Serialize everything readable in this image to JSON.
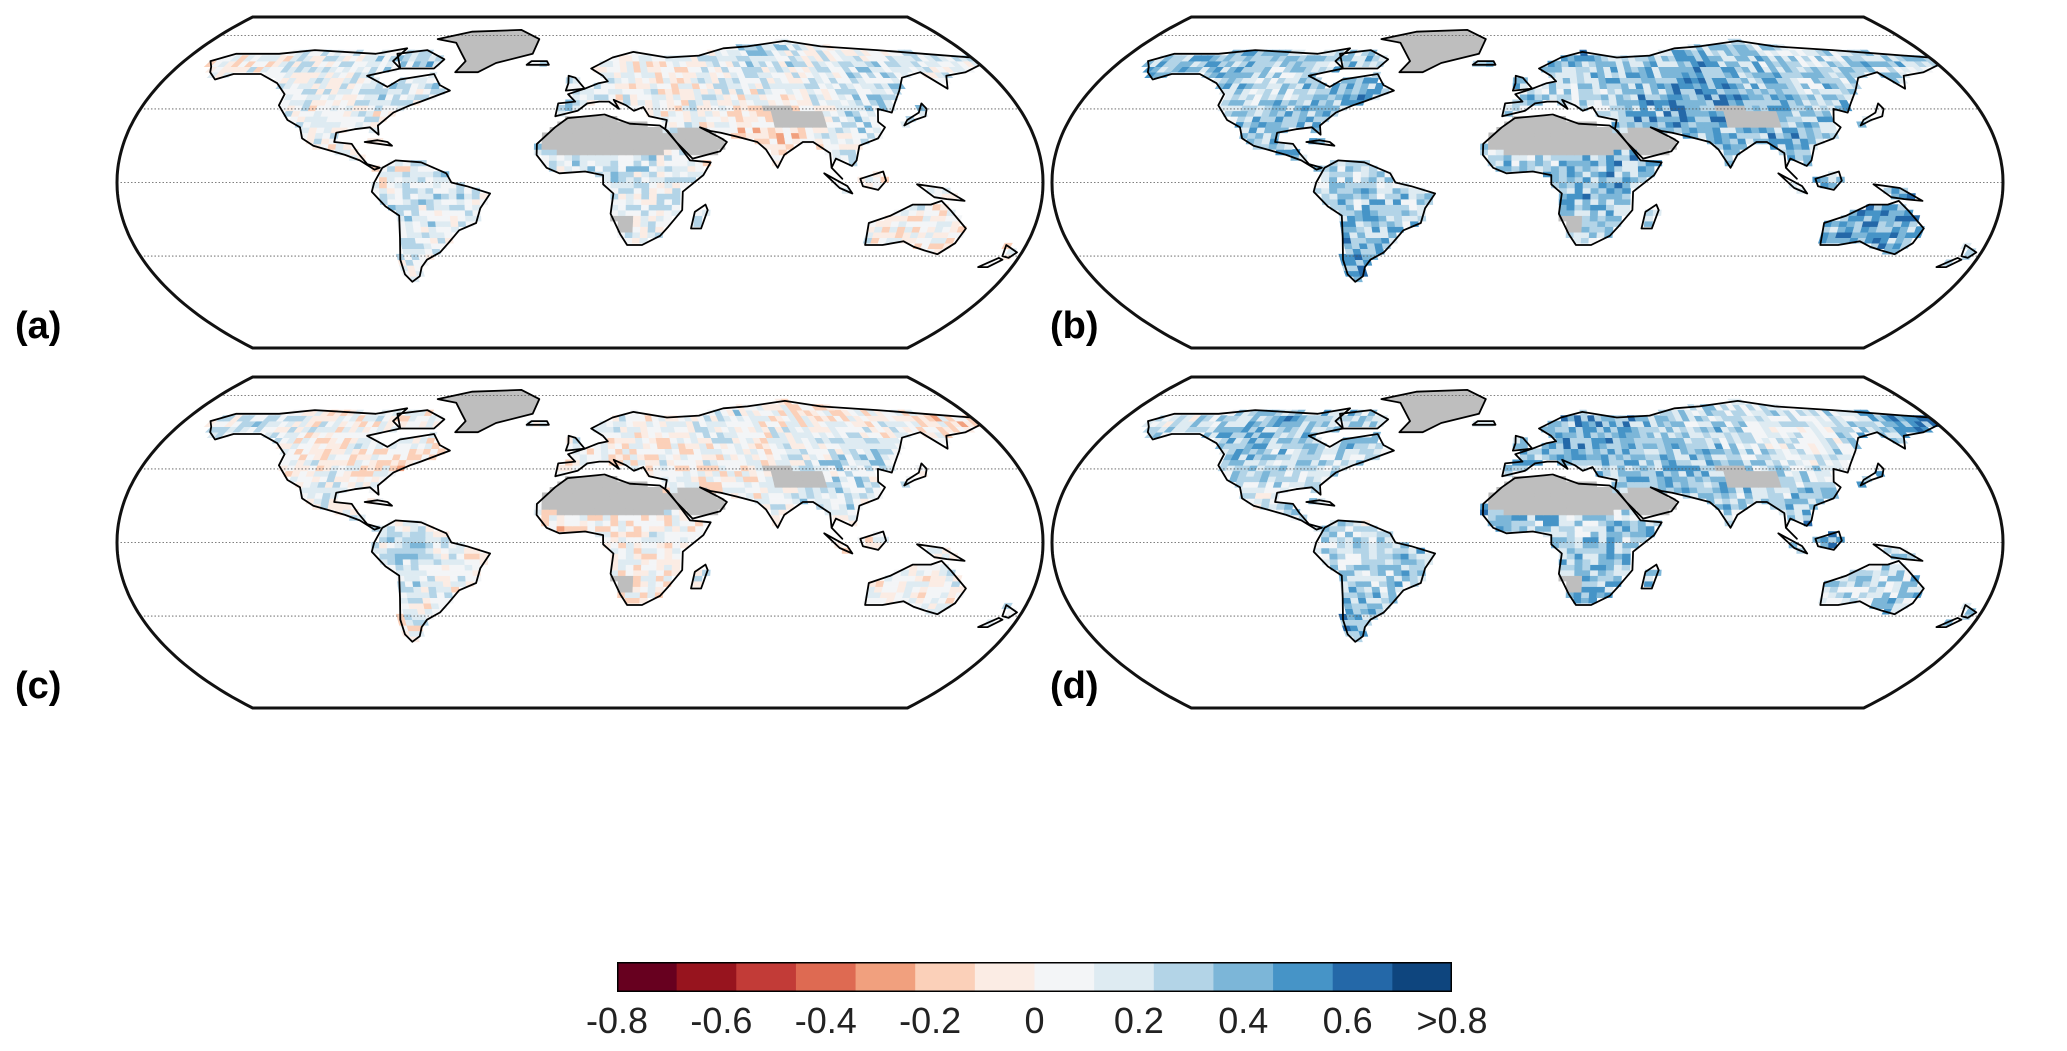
{
  "panels": [
    {
      "label": "(a)",
      "seed": 11,
      "bias": 0.12,
      "scale": 0.22
    },
    {
      "label": "(b)",
      "seed": 23,
      "bias": 0.32,
      "scale": 0.2
    },
    {
      "label": "(c)",
      "seed": 37,
      "bias": 0.05,
      "scale": 0.22
    },
    {
      "label": "(d)",
      "seed": 53,
      "bias": 0.3,
      "scale": 0.22
    }
  ],
  "colorbar": {
    "colors": [
      "#67001f",
      "#97141e",
      "#c23b37",
      "#de6a52",
      "#f1a07e",
      "#fbd0b9",
      "#fbece4",
      "#f3f5f7",
      "#deebf2",
      "#b3d4e7",
      "#7cb6d8",
      "#4694c7",
      "#2468a8",
      "#0e457e"
    ],
    "tick_labels": [
      "-0.8",
      "-0.6",
      "-0.4",
      "-0.2",
      "0",
      "0.2",
      "0.4",
      "0.6",
      ">0.8"
    ],
    "min": -0.8,
    "max": 0.8
  },
  "map_style": {
    "no_data_color": "#bebebe",
    "coastline_color": "#000000",
    "gridline_color": "#555555"
  }
}
